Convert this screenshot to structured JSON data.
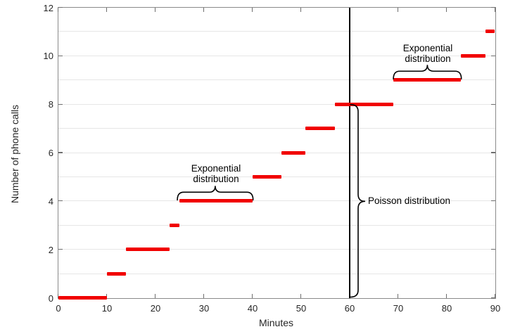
{
  "chart_data": {
    "type": "line",
    "subtype": "stairs-step-plot",
    "title": "",
    "xlabel": "Minutes",
    "ylabel": "Number of phone calls",
    "xlim": [
      0,
      90
    ],
    "ylim": [
      0,
      12
    ],
    "xticks": [
      0,
      10,
      20,
      30,
      40,
      50,
      60,
      70,
      80,
      90
    ],
    "yticks": [
      0,
      2,
      4,
      6,
      8,
      10,
      12
    ],
    "grid": "horizontal-only",
    "legend": "none",
    "series": [
      {
        "name": "cumulative-phone-calls",
        "color": "#f10000",
        "line_width": 5,
        "segments": [
          {
            "t_start": 0,
            "t_end": 10,
            "count": 0
          },
          {
            "t_start": 10,
            "t_end": 14,
            "count": 1
          },
          {
            "t_start": 14,
            "t_end": 23,
            "count": 2
          },
          {
            "t_start": 23,
            "t_end": 25,
            "count": 3
          },
          {
            "t_start": 25,
            "t_end": 40,
            "count": 4
          },
          {
            "t_start": 40,
            "t_end": 46,
            "count": 5
          },
          {
            "t_start": 46,
            "t_end": 51,
            "count": 6
          },
          {
            "t_start": 51,
            "t_end": 57,
            "count": 7
          },
          {
            "t_start": 57,
            "t_end": 69,
            "count": 8
          },
          {
            "t_start": 69,
            "t_end": 83,
            "count": 9
          },
          {
            "t_start": 83,
            "t_end": 88,
            "count": 10
          },
          {
            "t_start": 88,
            "t_end": 90,
            "count": 11
          }
        ]
      }
    ],
    "event_times_minutes": [
      10,
      14,
      23,
      25,
      40,
      46,
      51,
      57,
      69,
      83,
      88
    ],
    "vline": {
      "x": 60,
      "color": "#000000"
    },
    "annotations": [
      {
        "id": "exponential-lower",
        "line1": "Exponential",
        "line2": "distribution",
        "brace": "horizontal-up",
        "x_from": 24.5,
        "x_to": 40.1,
        "at_count": 4
      },
      {
        "id": "exponential-upper",
        "line1": "Exponential",
        "line2": "distribution",
        "brace": "horizontal-up",
        "x_from": 69,
        "x_to": 83,
        "at_count": 9
      },
      {
        "id": "poisson",
        "label": "Poisson distribution",
        "brace": "vertical-right",
        "at_x": 60,
        "y_from": 0,
        "y_to": 8
      }
    ],
    "colors": {
      "series_red": "#f10000",
      "axis_box": "#8a8a8a",
      "gridline": "#e6e6e6",
      "tick": "#6e6e6e",
      "tick_label": "#262626",
      "annotation": "#000000",
      "background": "#ffffff"
    }
  }
}
